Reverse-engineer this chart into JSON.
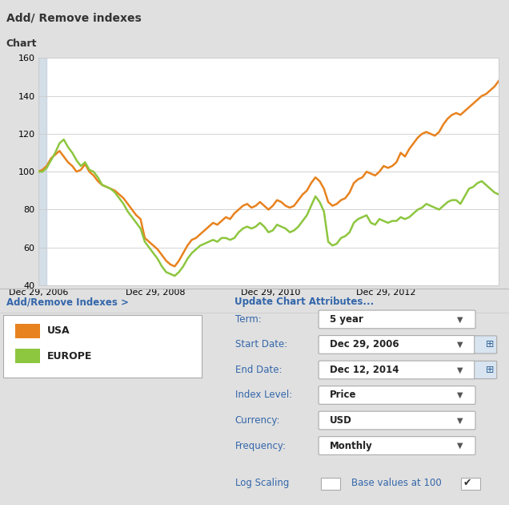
{
  "title_bar": "Add/ Remove indexes",
  "chart_label": "Chart",
  "usa_color": "#E8821E",
  "europe_color": "#8DC63F",
  "grid_color": "#CCCCCC",
  "ylim": [
    40,
    160
  ],
  "yticks": [
    40,
    60,
    80,
    100,
    120,
    140,
    160
  ],
  "xtick_labels": [
    "Dec 29, 2006",
    "Dec 29, 2008",
    "Dec 29, 2010",
    "Dec 29, 2012"
  ],
  "xtick_positions": [
    0,
    0.255,
    0.505,
    0.755
  ],
  "legend_items": [
    "USA",
    "EUROPE"
  ],
  "control_labels_main": [
    "Term:",
    "Start Date:",
    "End Date:",
    "Index Level:",
    "Currency:",
    "Frequency:"
  ],
  "control_values": [
    "5 year",
    "Dec 29, 2006",
    "Dec 12, 2014",
    "Price",
    "USD",
    "Monthly"
  ],
  "label_log_scaling": "Log Scaling",
  "label_base_values": "Base values at 100",
  "add_remove_text": "Add/Remove Indexes >",
  "update_text": "Update Chart Attributes...",
  "usa_data": [
    100,
    101,
    103,
    107,
    109,
    111,
    108,
    105,
    103,
    100,
    101,
    104,
    100,
    98,
    95,
    93,
    92,
    91,
    90,
    88,
    86,
    83,
    80,
    77,
    75,
    65,
    63,
    61,
    59,
    56,
    53,
    51,
    50,
    53,
    57,
    61,
    64,
    65,
    67,
    69,
    71,
    73,
    72,
    74,
    76,
    75,
    78,
    80,
    82,
    83,
    81,
    82,
    84,
    82,
    80,
    82,
    85,
    84,
    82,
    81,
    82,
    85,
    88,
    90,
    94,
    97,
    95,
    91,
    84,
    82,
    83,
    85,
    86,
    89,
    94,
    96,
    97,
    100,
    99,
    98,
    100,
    103,
    102,
    103,
    105,
    110,
    108,
    112,
    115,
    118,
    120,
    121,
    120,
    119,
    121,
    125,
    128,
    130,
    131,
    130,
    132,
    134,
    136,
    138,
    140,
    141,
    143,
    145,
    148
  ],
  "europe_data": [
    100,
    100,
    102,
    106,
    110,
    115,
    117,
    113,
    110,
    106,
    103,
    105,
    101,
    100,
    97,
    93,
    92,
    91,
    89,
    86,
    83,
    79,
    76,
    73,
    70,
    63,
    60,
    57,
    54,
    50,
    47,
    46,
    45,
    47,
    50,
    54,
    57,
    59,
    61,
    62,
    63,
    64,
    63,
    65,
    65,
    64,
    65,
    68,
    70,
    71,
    70,
    71,
    73,
    71,
    68,
    69,
    72,
    71,
    70,
    68,
    69,
    71,
    74,
    77,
    82,
    87,
    84,
    79,
    63,
    61,
    62,
    65,
    66,
    68,
    73,
    75,
    76,
    77,
    73,
    72,
    75,
    74,
    73,
    74,
    74,
    76,
    75,
    76,
    78,
    80,
    81,
    83,
    82,
    81,
    80,
    82,
    84,
    85,
    85,
    83,
    87,
    91,
    92,
    94,
    95,
    93,
    91,
    89,
    88
  ]
}
